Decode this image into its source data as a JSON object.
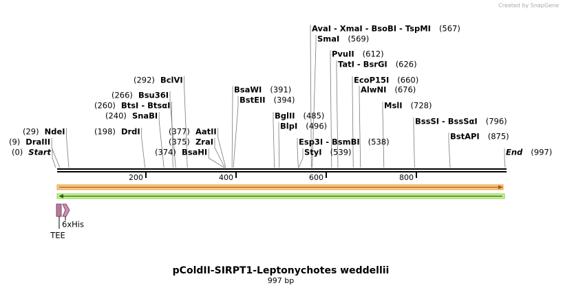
{
  "credit": "Created by SnapGene",
  "title": "pColdII-SIRPT1-Leptonychotes weddellii",
  "subtitle": "997 bp",
  "axis": {
    "range": [
      0,
      997
    ],
    "ticks": [
      200,
      400,
      600,
      800
    ]
  },
  "sites": [
    {
      "name": "Start",
      "label": "(0)",
      "pos": 0
    },
    {
      "name": "DraIII",
      "label": "(9)",
      "pos": 9
    },
    {
      "name": "NdeI",
      "label": "(29)",
      "pos": 29
    },
    {
      "name": "DrdI",
      "label": "(198)",
      "pos": 198
    },
    {
      "name": "SnaBI",
      "label": "(240)",
      "pos": 240
    },
    {
      "name": "BtsI - BtsαI",
      "label": "(260)",
      "pos": 260
    },
    {
      "name": "Bsu36I",
      "label": "(266)",
      "pos": 266
    },
    {
      "name": "BclVI",
      "label": "(292)",
      "pos": 292
    },
    {
      "name": "BsaHI",
      "label": "(374)",
      "pos": 374
    },
    {
      "name": "ZraI",
      "label": "(375)",
      "pos": 375
    },
    {
      "name": "AatII",
      "label": "(377)",
      "pos": 377
    },
    {
      "name": "BsaWI",
      "label": "(391)",
      "pos": 391
    },
    {
      "name": "BstEII",
      "label": "(394)",
      "pos": 394
    },
    {
      "name": "BglII",
      "label": "(485)",
      "pos": 485
    },
    {
      "name": "BlpI",
      "label": "(496)",
      "pos": 496
    },
    {
      "name": "Esp3I - BsmBI",
      "label": "(538)",
      "pos": 538
    },
    {
      "name": "StyI",
      "label": "(539)",
      "pos": 539
    },
    {
      "name": "AvaI - XmaI - BsoBI - TspMI",
      "label": "(567)",
      "pos": 567
    },
    {
      "name": "SmaI",
      "label": "(569)",
      "pos": 569
    },
    {
      "name": "PvuII",
      "label": "(612)",
      "pos": 612
    },
    {
      "name": "TatI - BsrGI",
      "label": "(626)",
      "pos": 626
    },
    {
      "name": "EcoP15I",
      "label": "(660)",
      "pos": 660
    },
    {
      "name": "AlwNI",
      "label": "(676)",
      "pos": 676
    },
    {
      "name": "MslI",
      "label": "(728)",
      "pos": 728
    },
    {
      "name": "BssSI - BssSαI",
      "label": "(796)",
      "pos": 796
    },
    {
      "name": "BstAPI",
      "label": "(875)",
      "pos": 875
    },
    {
      "name": "End",
      "label": "(997)",
      "pos": 997
    }
  ],
  "features": [
    {
      "name": "TEE"
    },
    {
      "name": "6xHis"
    }
  ]
}
